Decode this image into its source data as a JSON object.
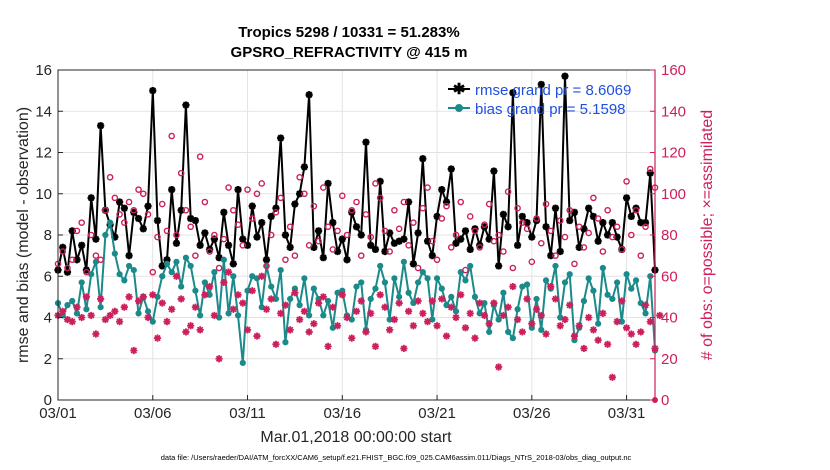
{
  "chart_data": {
    "type": "line",
    "title": "Tropics 5298 / 10331 = 51.283%",
    "subtitle": "GPSRO_REFRACTIVITY @ 415 m",
    "xlabel": "Mar.01,2018 00:00:00 start",
    "ylabel": "rmse and bias (model - observation)",
    "y2label": "# of obs: o=possible; ×=assimilated",
    "footer": "data file: /Users/raeder/DAI/ATM_forcXX/CAM6_setup/f.e21.FHIST_BGC.f09_025.CAM6assim.011/Diags_NTrS_2018-03/obs_diag_output.nc",
    "xlim": [
      0,
      31.5
    ],
    "ylim": [
      0,
      16
    ],
    "y2lim": [
      0,
      160
    ],
    "grid": true,
    "legend_position": "top-right",
    "xticks": [
      0,
      5,
      10,
      15,
      20,
      25,
      30
    ],
    "xtick_labels": [
      "03/01",
      "03/06",
      "03/11",
      "03/16",
      "03/21",
      "03/26",
      "03/31"
    ],
    "yticks": [
      0,
      2,
      4,
      6,
      8,
      10,
      12,
      14,
      16
    ],
    "ytick_labels": [
      "0",
      "2",
      "4",
      "6",
      "8",
      "10",
      "12",
      "14",
      "16"
    ],
    "y2ticks": [
      0,
      20,
      40,
      60,
      80,
      100,
      120,
      140,
      160
    ],
    "y2tick_labels": [
      "0",
      "20",
      "40",
      "60",
      "80",
      "100",
      "120",
      "140",
      "160"
    ],
    "series": [
      {
        "name": "rmse grand pr = 8.6069",
        "axis": "left",
        "color": "#000000",
        "marker": "star",
        "start": 0,
        "step": 0.25,
        "values": [
          6.3,
          7.4,
          6.2,
          8.2,
          6.8,
          7.5,
          6.3,
          9.8,
          7.8,
          13.3,
          9.2,
          8.5,
          7.9,
          9.6,
          9.3,
          7.0,
          9.1,
          8.8,
          8.3,
          9.4,
          15.0,
          8.7,
          6.5,
          6.8,
          10.2,
          7.6,
          9.2,
          14.3,
          8.8,
          8.7,
          7.5,
          8.1,
          7.3,
          7.8,
          6.9,
          9.1,
          7.5,
          6.6,
          10.2,
          7.8,
          7.5,
          9.4,
          7.9,
          8.6,
          6.8,
          8.9,
          9.3,
          12.7,
          8.0,
          7.4,
          9.5,
          10.0,
          11.3,
          14.8,
          7.4,
          8.2,
          6.9,
          10.5,
          8.6,
          7.2,
          7.8,
          6.8,
          9.1,
          8.4,
          8.0,
          12.5,
          7.5,
          7.3,
          10.6,
          7.2,
          8.1,
          7.6,
          7.7,
          7.8,
          9.6,
          6.6,
          8.1,
          11.7,
          7.7,
          7.0,
          8.9,
          10.2,
          9.6,
          11.2,
          7.6,
          7.8,
          8.2,
          7.3,
          8.3,
          7.5,
          8.4,
          7.8,
          11.1,
          6.5,
          9.0,
          8.4,
          14.9,
          7.5,
          8.9,
          8.6,
          7.9,
          8.7,
          15.3,
          8.4,
          7.0,
          9.3,
          7.2,
          15.7,
          8.7,
          9.1,
          7.4,
          8.3,
          9.3,
          8.9,
          7.7,
          8.6,
          8.0,
          8.6,
          7.9,
          7.3,
          9.8,
          8.9,
          9.3,
          8.6,
          8.6,
          11.0,
          6.3
        ]
      },
      {
        "name": "bias grand pr = 5.1598",
        "axis": "left",
        "color": "#1a8a8a",
        "marker": "circle",
        "start": 0,
        "step": 0.25,
        "values": [
          4.7,
          4.1,
          4.6,
          4.8,
          4.2,
          5.7,
          4.4,
          6.1,
          6.7,
          4.5,
          8.0,
          8.6,
          7.1,
          6.1,
          5.8,
          6.5,
          6.3,
          4.2,
          5.0,
          4.3,
          3.8,
          5.0,
          6.0,
          6.6,
          6.2,
          6.7,
          5.5,
          6.9,
          6.5,
          5.3,
          4.1,
          5.7,
          5.1,
          6.2,
          4.0,
          6.8,
          4.2,
          6.0,
          4.1,
          1.8,
          5.3,
          6.0,
          5.9,
          4.5,
          6.5,
          5.5,
          4.9,
          6.3,
          2.8,
          4.9,
          5.4,
          4.6,
          5.9,
          4.1,
          5.4,
          4.9,
          4.1,
          4.8,
          3.5,
          5.2,
          5.3,
          4.1,
          3.9,
          5.5,
          5.7,
          3.4,
          4.9,
          5.4,
          6.5,
          5.7,
          3.9,
          5.9,
          5.0,
          6.7,
          5.2,
          4.7,
          5.7,
          6.2,
          5.9,
          3.9,
          5.9,
          5.4,
          4.6,
          5.0,
          4.3,
          6.2,
          5.8,
          6.5,
          5.0,
          4.2,
          4.7,
          3.3,
          4.6,
          3.9,
          5.2,
          3.3,
          3.0,
          4.4,
          5.5,
          5.6,
          3.5,
          4.9,
          3.4,
          5.8,
          5.4,
          6.5,
          4.0,
          5.7,
          6.1,
          2.9,
          3.5,
          4.8,
          5.9,
          5.3,
          3.7,
          6.4,
          5.1,
          4.9,
          5.7,
          3.8,
          6.1,
          5.4,
          5.8,
          4.7,
          4.2,
          6.0,
          2.4
        ]
      },
      {
        "name": "possible",
        "axis": "right",
        "color": "#cc1f5c",
        "marker": "o",
        "start": 0,
        "step": 0.25,
        "values": [
          66,
          72,
          64,
          68,
          82,
          86,
          62,
          80,
          70,
          68,
          92,
          108,
          98,
          90,
          86,
          96,
          92,
          102,
          100,
          90,
          62,
          79,
          95,
          82,
          128,
          80,
          110,
          92,
          84,
          70,
          118,
          96,
          72,
          80,
          64,
          78,
          103,
          92,
          85,
          75,
          102,
          88,
          100,
          105,
          65,
          80,
          91,
          98,
          68,
          84,
          70,
          108,
          100,
          75,
          94,
          77,
          103,
          84,
          73,
          82,
          99,
          80,
          92,
          96,
          70,
          90,
          79,
          105,
          98,
          82,
          72,
          92,
          83,
          96,
          75,
          86,
          64,
          93,
          103,
          77,
          68,
          88,
          94,
          74,
          80,
          96,
          63,
          89,
          82,
          74,
          85,
          95,
          77,
          80,
          72,
          101,
          64,
          93,
          86,
          83,
          67,
          88,
          76,
          95,
          82,
          70,
          87,
          79,
          92,
          66,
          84,
          74,
          81,
          98,
          88,
          72,
          92,
          79,
          84,
          73,
          106,
          80,
          92,
          70,
          84,
          112,
          103
        ]
      },
      {
        "name": "assimilated",
        "axis": "right",
        "color": "#cc1f5c",
        "marker": "x",
        "start": 0,
        "step": 0.25,
        "values": [
          41,
          43,
          39,
          38,
          45,
          40,
          50,
          41,
          32,
          49,
          39,
          41,
          43,
          38,
          45,
          50,
          24,
          48,
          50,
          40,
          51,
          30,
          47,
          38,
          44,
          60,
          49,
          33,
          36,
          45,
          34,
          51,
          55,
          41,
          20,
          57,
          62,
          44,
          51,
          47,
          34,
          53,
          31,
          60,
          44,
          49,
          27,
          42,
          46,
          34,
          52,
          39,
          43,
          33,
          37,
          47,
          50,
          26,
          45,
          36,
          51,
          40,
          30,
          43,
          48,
          33,
          42,
          26,
          51,
          45,
          34,
          39,
          47,
          25,
          43,
          36,
          48,
          42,
          38,
          48,
          36,
          49,
          31,
          45,
          40,
          51,
          35,
          42,
          30,
          47,
          41,
          37,
          47,
          16,
          41,
          45,
          55,
          39,
          33,
          49,
          37,
          44,
          41,
          32,
          55,
          49,
          36,
          39,
          46,
          31,
          36,
          25,
          40,
          34,
          29,
          42,
          27,
          11,
          38,
          48,
          35,
          32,
          27,
          33,
          46,
          38,
          25,
          41
        ]
      }
    ]
  }
}
